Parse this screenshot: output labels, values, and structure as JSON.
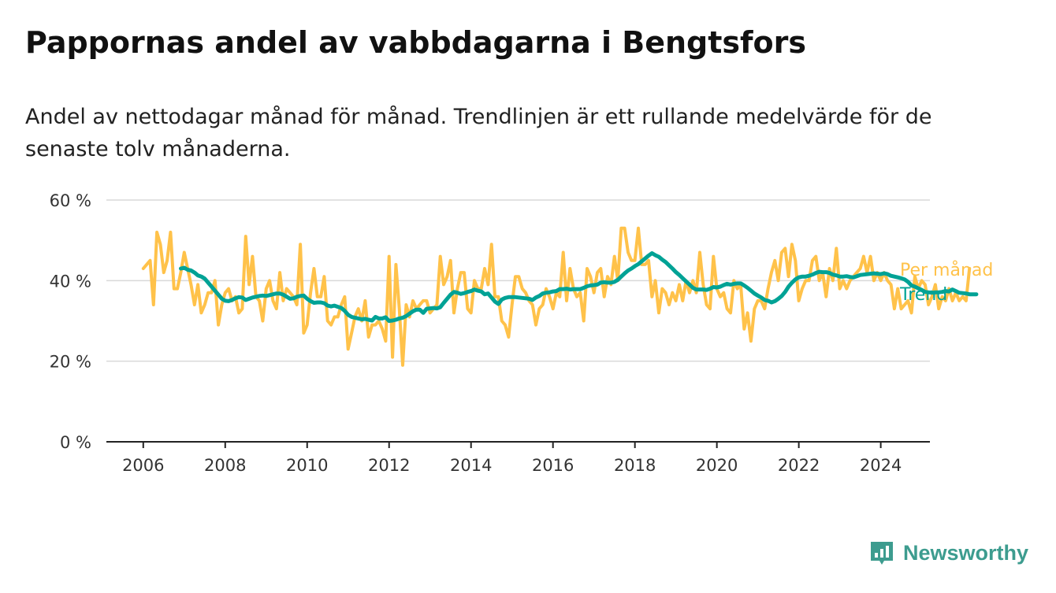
{
  "title": "Pappornas andel av vabbdagarna i Bengtsfors",
  "subtitle": "Andel av nettodagar månad för månad. Trendlinjen är ett rullande medelvärde för de senaste tolv månaderna.",
  "brand": "Newsworthy",
  "chart_data": {
    "type": "line",
    "y_ticks": [
      0,
      20,
      40,
      60
    ],
    "y_tick_suffix": " %",
    "ylim": [
      0,
      60
    ],
    "x_ticks": [
      2006,
      2008,
      2010,
      2012,
      2014,
      2016,
      2018,
      2020,
      2022,
      2024
    ],
    "xlim": [
      2005.1,
      2025.2
    ],
    "grid": true,
    "legend": "end-of-line labels, right",
    "series": [
      {
        "name": "Per månad",
        "color": "#ffc24a",
        "x_start": 2006.0,
        "step": 0.08333,
        "values": [
          43,
          44,
          45,
          34,
          52,
          49,
          42,
          45,
          52,
          38,
          38,
          42,
          47,
          43,
          39,
          34,
          39,
          32,
          34,
          37,
          37,
          40,
          29,
          34,
          37,
          38,
          35,
          36,
          32,
          33,
          51,
          39,
          46,
          36,
          35,
          30,
          38,
          40,
          35,
          33,
          42,
          35,
          38,
          37,
          36,
          34,
          49,
          27,
          29,
          37,
          43,
          36,
          36,
          41,
          30,
          29,
          31,
          31,
          34,
          36,
          23,
          27,
          31,
          33,
          30,
          35,
          26,
          29,
          29,
          30,
          28,
          25,
          46,
          21,
          44,
          33,
          19,
          34,
          31,
          35,
          33,
          34,
          35,
          35,
          32,
          33,
          34,
          46,
          39,
          41,
          45,
          32,
          38,
          42,
          42,
          33,
          32,
          40,
          38,
          38,
          43,
          39,
          49,
          36,
          36,
          30,
          29,
          26,
          34,
          41,
          41,
          38,
          37,
          35,
          34,
          29,
          33,
          34,
          38,
          36,
          33,
          37,
          36,
          47,
          35,
          43,
          38,
          36,
          37,
          30,
          43,
          41,
          37,
          42,
          43,
          36,
          41,
          39,
          46,
          40,
          53,
          53,
          47,
          45,
          45,
          53,
          44,
          44,
          45,
          36,
          40,
          32,
          38,
          37,
          34,
          37,
          35,
          39,
          35,
          40,
          37,
          40,
          37,
          47,
          39,
          34,
          33,
          46,
          38,
          36,
          37,
          33,
          32,
          40,
          38,
          39,
          28,
          32,
          25,
          33,
          35,
          35,
          33,
          38,
          42,
          45,
          40,
          47,
          48,
          41,
          49,
          45,
          35,
          38,
          40,
          40,
          45,
          46,
          40,
          42,
          36,
          43,
          40,
          48,
          38,
          40,
          38,
          40,
          41,
          42,
          43,
          46,
          42,
          46,
          40,
          42,
          40,
          42,
          40,
          39,
          33,
          38,
          33,
          34,
          35,
          32,
          41,
          38,
          40,
          39,
          34,
          36,
          39,
          33,
          36,
          35,
          38,
          35,
          37,
          35,
          36,
          35,
          43
        ]
      },
      {
        "name": "Trend",
        "color": "#00a295",
        "x_start": 2006.917,
        "step": 0.08333,
        "values": [
          43,
          43.2,
          42.7,
          42.5,
          42,
          41.3,
          41,
          40.5,
          39.5,
          38.5,
          37.5,
          36.5,
          35.5,
          35,
          34.9,
          35.2,
          35.6,
          35.9,
          35.8,
          35.2,
          35.5,
          35.8,
          36,
          36.2,
          36.3,
          36.2,
          36.4,
          36.6,
          36.8,
          36.8,
          36.5,
          36,
          35.5,
          35.6,
          36,
          36.2,
          36.3,
          35.5,
          34.9,
          34.5,
          34.6,
          34.6,
          34.4,
          33.8,
          33.6,
          33.8,
          33.5,
          33.2,
          32.5,
          31.5,
          31,
          30.8,
          30.6,
          30.4,
          30.5,
          30.3,
          30.1,
          31,
          30.6,
          30.6,
          30.9,
          30,
          30.1,
          30.3,
          30.6,
          30.8,
          31.2,
          31.8,
          32.4,
          32.8,
          32.8,
          32,
          33,
          33.1,
          33.2,
          33.1,
          33.4,
          34.5,
          35.5,
          36.5,
          37.2,
          37,
          36.7,
          36.9,
          37.2,
          37.4,
          37.8,
          37.5,
          37.3,
          36.6,
          36.8,
          35.8,
          34.8,
          34.2,
          35.3,
          35.7,
          35.9,
          35.9,
          35.9,
          35.8,
          35.7,
          35.6,
          35.5,
          35.2,
          35.8,
          36.2,
          36.8,
          37,
          37.1,
          37.3,
          37.4,
          37.9,
          37.9,
          38,
          37.8,
          37.9,
          37.9,
          37.9,
          38.2,
          38.6,
          38.8,
          38.9,
          39,
          39.5,
          39.6,
          39.5,
          39.5,
          39.7,
          40.2,
          41,
          41.8,
          42.5,
          43,
          43.6,
          44.1,
          44.8,
          45.5,
          46.2,
          46.8,
          46.3,
          45.9,
          45.2,
          44.6,
          43.8,
          43,
          42.1,
          41.4,
          40.6,
          39.8,
          39,
          38.2,
          37.8,
          37.8,
          37.8,
          37.7,
          38,
          38.4,
          38.3,
          38.5,
          38.9,
          39.2,
          39,
          39.2,
          39.3,
          39.3,
          38.8,
          38.2,
          37.5,
          36.8,
          36.3,
          35.8,
          35.2,
          35,
          34.6,
          34.9,
          35.5,
          36.2,
          37.2,
          38.5,
          39.5,
          40.3,
          40.8,
          41,
          41,
          41.2,
          41.5,
          41.9,
          42.2,
          42.1,
          42.1,
          41.9,
          41.5,
          41.3,
          41,
          41,
          41.1,
          40.9,
          40.8,
          41.1,
          41.4,
          41.5,
          41.6,
          41.7,
          41.8,
          41.7,
          41.6,
          41.8,
          41.6,
          41.2,
          41,
          40.8,
          40.6,
          40.3,
          39.7,
          38.8,
          38.5,
          38.1,
          37.7,
          37.2,
          37.1,
          37,
          37.1,
          37.1,
          37.2,
          37.4,
          37.3,
          37.8,
          37.4,
          37,
          36.9,
          36.8,
          36.6,
          36.6,
          36.6
        ]
      }
    ]
  }
}
